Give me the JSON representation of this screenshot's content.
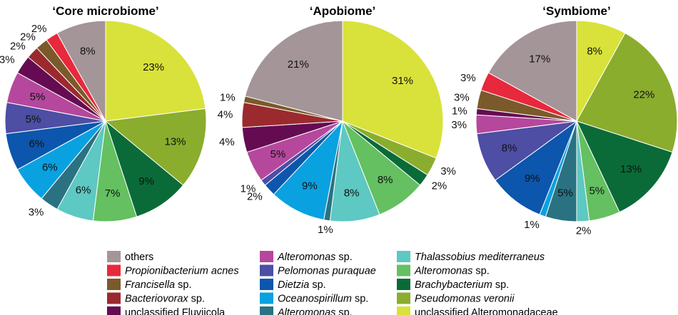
{
  "legend": [
    {
      "key": "others",
      "italic": "",
      "normal": "others",
      "color": "#a49599"
    },
    {
      "key": "propionibacterium",
      "italic": "Propionibacterium acnes",
      "normal": "",
      "color": "#e8283c"
    },
    {
      "key": "francisella",
      "italic": "Francisella",
      "normal": " sp.",
      "color": "#7a5a2a"
    },
    {
      "key": "bacteriovorax",
      "italic": "Bacteriovorax",
      "normal": " sp.",
      "color": "#9b2a2e"
    },
    {
      "key": "fluviicola",
      "italic": "",
      "normal": "unclassified Fluviicola",
      "color": "#650b52"
    },
    {
      "key": "alteromonas_a",
      "italic": "Alteromonas",
      "normal": " sp.",
      "color": "#b5489c"
    },
    {
      "key": "pelomonas",
      "italic": "Pelomonas puraquae",
      "normal": "",
      "color": "#4d4ea4"
    },
    {
      "key": "dietzia",
      "italic": "Dietzia",
      "normal": " sp.",
      "color": "#0c56ad"
    },
    {
      "key": "oceanospirillum",
      "italic": "Oceanospirillum",
      "normal": " sp.",
      "color": "#0aa1e0"
    },
    {
      "key": "alteromonas_b",
      "italic": "Alteromonas",
      "normal": " sp.",
      "color": "#2a7282"
    },
    {
      "key": "thalassobius",
      "italic": "Thalassobius mediterraneus",
      "normal": "",
      "color": "#5ec8c2"
    },
    {
      "key": "alteromonas_c",
      "italic": "Alteromonas",
      "normal": " sp.",
      "color": "#64c060"
    },
    {
      "key": "brachybacterium",
      "italic": "Brachybacterium",
      "normal": " sp.",
      "color": "#0a6b38"
    },
    {
      "key": "pseudomonas",
      "italic": "Pseudomonas veronii",
      "normal": "",
      "color": "#8aad2e"
    },
    {
      "key": "alteromonadaceae",
      "italic": "",
      "normal": "unclassified Alteromonadaceae",
      "color": "#d9e23a"
    }
  ],
  "chart_data": [
    {
      "type": "pie",
      "title": "‘Core microbiome’",
      "slices": [
        {
          "key": "alteromonadaceae",
          "value": 23,
          "label": "23%"
        },
        {
          "key": "pseudomonas",
          "value": 13,
          "label": "13%"
        },
        {
          "key": "brachybacterium",
          "value": 9,
          "label": "9%"
        },
        {
          "key": "alteromonas_c",
          "value": 7,
          "label": "7%"
        },
        {
          "key": "thalassobius",
          "value": 6,
          "label": "6%"
        },
        {
          "key": "alteromonas_b",
          "value": 3,
          "label": "3%"
        },
        {
          "key": "oceanospirillum",
          "value": 6,
          "label": "6%"
        },
        {
          "key": "dietzia",
          "value": 6,
          "label": "6%"
        },
        {
          "key": "pelomonas",
          "value": 5,
          "label": "5%"
        },
        {
          "key": "alteromonas_a",
          "value": 5,
          "label": "5%"
        },
        {
          "key": "fluviicola",
          "value": 3,
          "label": "3%"
        },
        {
          "key": "bacteriovorax",
          "value": 2,
          "label": "2%"
        },
        {
          "key": "francisella",
          "value": 2,
          "label": "2%"
        },
        {
          "key": "propionibacterium",
          "value": 2,
          "label": "2%"
        },
        {
          "key": "others",
          "value": 8,
          "label": "8%"
        }
      ]
    },
    {
      "type": "pie",
      "title": "‘Apobiome’",
      "slices": [
        {
          "key": "alteromonadaceae",
          "value": 31,
          "label": "31%"
        },
        {
          "key": "pseudomonas",
          "value": 3,
          "label": "3%"
        },
        {
          "key": "brachybacterium",
          "value": 2,
          "label": "2%"
        },
        {
          "key": "alteromonas_c",
          "value": 8,
          "label": "8%"
        },
        {
          "key": "thalassobius",
          "value": 8,
          "label": "8%"
        },
        {
          "key": "alteromonas_b",
          "value": 1,
          "label": "1%"
        },
        {
          "key": "oceanospirillum",
          "value": 9,
          "label": "9%"
        },
        {
          "key": "dietzia",
          "value": 2,
          "label": "2%"
        },
        {
          "key": "pelomonas",
          "value": 1,
          "label": "1%"
        },
        {
          "key": "alteromonas_a",
          "value": 5,
          "label": "5%"
        },
        {
          "key": "fluviicola",
          "value": 4,
          "label": "4%"
        },
        {
          "key": "bacteriovorax",
          "value": 4,
          "label": "4%"
        },
        {
          "key": "francisella",
          "value": 1,
          "label": "1%"
        },
        {
          "key": "others",
          "value": 21,
          "label": "21%"
        }
      ]
    },
    {
      "type": "pie",
      "title": "‘Symbiome’",
      "slices": [
        {
          "key": "alteromonadaceae",
          "value": 8,
          "label": "8%"
        },
        {
          "key": "pseudomonas",
          "value": 22,
          "label": "22%"
        },
        {
          "key": "brachybacterium",
          "value": 13,
          "label": "13%"
        },
        {
          "key": "alteromonas_c",
          "value": 5,
          "label": "5%"
        },
        {
          "key": "thalassobius",
          "value": 2,
          "label": "2%"
        },
        {
          "key": "alteromonas_b",
          "value": 5,
          "label": "5%"
        },
        {
          "key": "oceanospirillum",
          "value": 1,
          "label": "1%"
        },
        {
          "key": "dietzia",
          "value": 9,
          "label": "9%"
        },
        {
          "key": "pelomonas",
          "value": 8,
          "label": "8%"
        },
        {
          "key": "alteromonas_a",
          "value": 3,
          "label": "3%"
        },
        {
          "key": "fluviicola",
          "value": 1,
          "label": "1%"
        },
        {
          "key": "francisella",
          "value": 3,
          "label": "3%"
        },
        {
          "key": "propionibacterium",
          "value": 3,
          "label": "3%"
        },
        {
          "key": "others",
          "value": 17,
          "label": "17%"
        }
      ]
    }
  ]
}
